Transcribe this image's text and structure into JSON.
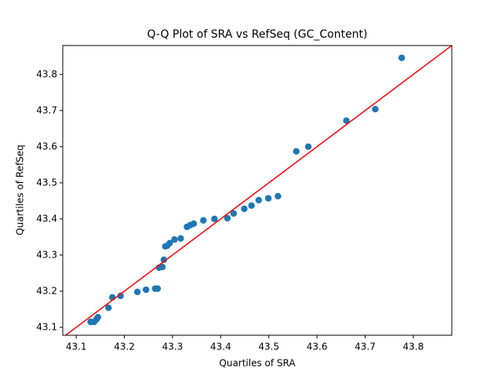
{
  "chart_data": {
    "type": "scatter",
    "title": "Q-Q Plot of SRA vs RefSeq (GC_Content)",
    "x_label": "Quartiles of SRA",
    "y_label": "Quartiles of RefSeq",
    "x": [
      43.13,
      43.137,
      43.142,
      43.145,
      43.167,
      43.175,
      43.192,
      43.227,
      43.245,
      43.264,
      43.269,
      43.272,
      43.279,
      43.282,
      43.285,
      43.289,
      43.294,
      43.304,
      43.317,
      43.33,
      43.337,
      43.344,
      43.364,
      43.387,
      43.414,
      43.427,
      43.449,
      43.464,
      43.479,
      43.499,
      43.519,
      43.557,
      43.582,
      43.661,
      43.721,
      43.776
    ],
    "values": [
      43.115,
      43.115,
      43.122,
      43.128,
      43.154,
      43.183,
      43.187,
      43.198,
      43.204,
      43.207,
      43.207,
      43.265,
      43.267,
      43.287,
      43.324,
      43.326,
      43.333,
      43.343,
      43.346,
      43.378,
      43.383,
      43.387,
      43.396,
      43.4,
      43.402,
      43.415,
      43.428,
      43.437,
      43.452,
      43.457,
      43.463,
      43.587,
      43.6,
      43.672,
      43.704,
      43.846
    ],
    "color": "#1f77b4",
    "line_color": "#ff0000",
    "xlim": [
      43.072,
      43.88
    ],
    "ylim": [
      43.078,
      43.88
    ],
    "xticks": [
      {
        "value": 43.1,
        "label": "43.1"
      },
      {
        "value": 43.2,
        "label": "43.2"
      },
      {
        "value": 43.3,
        "label": "43.3"
      },
      {
        "value": 43.4,
        "label": "43.4"
      },
      {
        "value": 43.5,
        "label": "43.5"
      },
      {
        "value": 43.6,
        "label": "43.6"
      },
      {
        "value": 43.7,
        "label": "43.7"
      },
      {
        "value": 43.8,
        "label": "43.8"
      }
    ],
    "yticks": [
      {
        "value": 43.1,
        "label": "43.1"
      },
      {
        "value": 43.2,
        "label": "43.2"
      },
      {
        "value": 43.3,
        "label": "43.3"
      },
      {
        "value": 43.4,
        "label": "43.4"
      },
      {
        "value": 43.5,
        "label": "43.5"
      },
      {
        "value": 43.6,
        "label": "43.6"
      },
      {
        "value": 43.7,
        "label": "43.7"
      },
      {
        "value": 43.8,
        "label": "43.8"
      }
    ]
  }
}
